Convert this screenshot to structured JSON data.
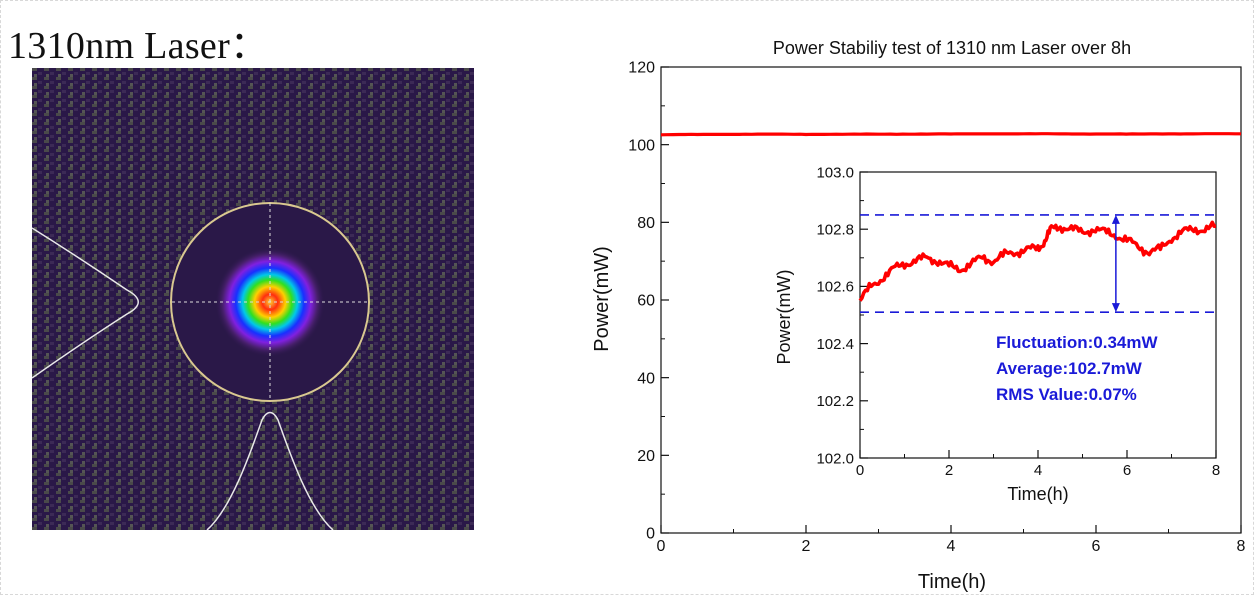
{
  "heading": "1310nm Laser：",
  "colors": {
    "data": "#ff0000",
    "dash": "#1a1ad8",
    "annotation": "#1a1ad8",
    "beam_background": "#2a1848",
    "beam_circle": "#d9c890"
  },
  "chart_data": [
    {
      "type": "line",
      "title": "Power Stabiliy test of 1310 nm Laser over 8h",
      "xlabel": "Time(h)",
      "ylabel": "Power(mW)",
      "xlim": [
        0,
        8
      ],
      "ylim": [
        0,
        120
      ],
      "xticks": [
        0,
        2,
        4,
        6,
        8
      ],
      "yticks": [
        0,
        20,
        40,
        60,
        80,
        100,
        120
      ],
      "grid": false,
      "series": [
        {
          "x": [
            0,
            0.5,
            1,
            1.5,
            2,
            2.5,
            3,
            3.5,
            4,
            4.5,
            5,
            5.5,
            6,
            6.5,
            7,
            7.5,
            8
          ],
          "y": [
            102.55,
            102.63,
            102.68,
            102.7,
            102.67,
            102.68,
            102.7,
            102.73,
            102.75,
            102.8,
            102.8,
            102.78,
            102.76,
            102.73,
            102.78,
            102.8,
            102.8
          ]
        }
      ]
    },
    {
      "type": "line",
      "role": "inset",
      "xlabel": "Time(h)",
      "ylabel": "Power(mW)",
      "xlim": [
        0,
        8
      ],
      "ylim": [
        102.0,
        103.0
      ],
      "xticks": [
        0,
        2,
        4,
        6,
        8
      ],
      "yticks": [
        102.0,
        102.2,
        102.4,
        102.6,
        102.8,
        103.0
      ],
      "grid": false,
      "series": [
        {
          "x": [
            0,
            0.25,
            0.5,
            0.75,
            1,
            1.25,
            1.5,
            1.75,
            2,
            2.25,
            2.5,
            2.75,
            3,
            3.25,
            3.5,
            3.75,
            4,
            4.15,
            4.3,
            4.5,
            4.75,
            5,
            5.25,
            5.5,
            5.75,
            6,
            6.25,
            6.5,
            6.75,
            7,
            7.25,
            7.5,
            7.75,
            8
          ],
          "y": [
            102.55,
            102.6,
            102.63,
            102.66,
            102.68,
            102.69,
            102.7,
            102.69,
            102.67,
            102.66,
            102.68,
            102.7,
            102.69,
            102.71,
            102.72,
            102.73,
            102.73,
            102.76,
            102.8,
            102.81,
            102.8,
            102.79,
            102.8,
            102.79,
            102.78,
            102.76,
            102.74,
            102.72,
            102.73,
            102.77,
            102.79,
            102.8,
            102.8,
            102.81
          ]
        }
      ],
      "reference_lines": [
        102.51,
        102.85
      ],
      "annotations": [
        "Fluctuation:0.34mW",
        "Average:102.7mW",
        "RMS Value:0.07%"
      ]
    }
  ]
}
